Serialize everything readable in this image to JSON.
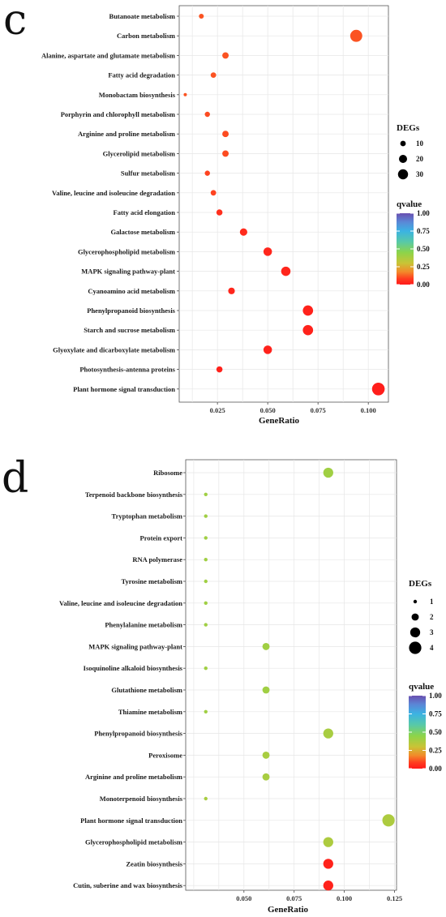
{
  "panels": [
    {
      "letter": "c",
      "chart_data": {
        "type": "scatter",
        "xlabel": "GeneRatio",
        "xlim": [
          0.006,
          0.11
        ],
        "xticks": [
          0.025,
          0.05,
          0.075,
          0.1
        ],
        "xtick_labels": [
          "0.025",
          "0.050",
          "0.075",
          "0.100"
        ],
        "grid": true,
        "legend_position": "right",
        "size_legend": {
          "title": "DEGs",
          "values": [
            10,
            20,
            30
          ],
          "labels": [
            "10",
            "20",
            "30"
          ]
        },
        "color_legend": {
          "title": "qvalue",
          "range": [
            0,
            1
          ],
          "ticks": [
            1.0,
            0.75,
            0.5,
            0.25,
            0.0
          ],
          "tick_labels": [
            "1.00",
            "0.75",
            "0.50",
            "0.25",
            "0.00"
          ]
        },
        "points": [
          {
            "term": "Butanoate metabolism",
            "gene_ratio": 0.017,
            "count": 8,
            "qvalue": 0.11
          },
          {
            "term": "Carbon metabolism",
            "gene_ratio": 0.094,
            "count": 42,
            "qvalue": 0.11
          },
          {
            "term": "Alanine, aspartate and glutamate metabolism",
            "gene_ratio": 0.029,
            "count": 13,
            "qvalue": 0.11
          },
          {
            "term": "Fatty acid degradation",
            "gene_ratio": 0.023,
            "count": 10,
            "qvalue": 0.11
          },
          {
            "term": "Monobactam biosynthesis",
            "gene_ratio": 0.009,
            "count": 4,
            "qvalue": 0.11
          },
          {
            "term": "Porphyrin and chlorophyll metabolism",
            "gene_ratio": 0.02,
            "count": 9,
            "qvalue": 0.1
          },
          {
            "term": "Arginine and proline metabolism",
            "gene_ratio": 0.029,
            "count": 13,
            "qvalue": 0.1
          },
          {
            "term": "Glycerolipid metabolism",
            "gene_ratio": 0.029,
            "count": 13,
            "qvalue": 0.1
          },
          {
            "term": "Sulfur metabolism",
            "gene_ratio": 0.02,
            "count": 9,
            "qvalue": 0.09
          },
          {
            "term": "Valine, leucine and isoleucine degradation",
            "gene_ratio": 0.023,
            "count": 10,
            "qvalue": 0.09
          },
          {
            "term": "Fatty acid elongation",
            "gene_ratio": 0.026,
            "count": 12,
            "qvalue": 0.05
          },
          {
            "term": "Galactose metabolism",
            "gene_ratio": 0.038,
            "count": 17,
            "qvalue": 0.04
          },
          {
            "term": "Glycerophospholipid metabolism",
            "gene_ratio": 0.05,
            "count": 22,
            "qvalue": 0.03
          },
          {
            "term": "MAPK signaling pathway-plant",
            "gene_ratio": 0.059,
            "count": 26,
            "qvalue": 0.03
          },
          {
            "term": "Cyanoamino acid metabolism",
            "gene_ratio": 0.032,
            "count": 14,
            "qvalue": 0.03
          },
          {
            "term": "Phenylpropanoid biosynthesis",
            "gene_ratio": 0.07,
            "count": 31,
            "qvalue": 0.02
          },
          {
            "term": "Starch and sucrose metabolism",
            "gene_ratio": 0.07,
            "count": 31,
            "qvalue": 0.02
          },
          {
            "term": "Glyoxylate and dicarboxylate metabolism",
            "gene_ratio": 0.05,
            "count": 22,
            "qvalue": 0.02
          },
          {
            "term": "Photosynthesis-antenna proteins",
            "gene_ratio": 0.026,
            "count": 12,
            "qvalue": 0.02
          },
          {
            "term": "Plant hormone signal transduction",
            "gene_ratio": 0.105,
            "count": 46,
            "qvalue": 0.01
          }
        ]
      }
    },
    {
      "letter": "d",
      "chart_data": {
        "type": "scatter",
        "xlabel": "GeneRatio",
        "xlim": [
          0.021,
          0.126
        ],
        "xticks": [
          0.05,
          0.075,
          0.1,
          0.125
        ],
        "xtick_labels": [
          "0.050",
          "0.075",
          "0.100",
          "0.125"
        ],
        "grid": true,
        "legend_position": "right",
        "size_legend": {
          "title": "DEGs",
          "values": [
            1,
            2,
            3,
            4
          ],
          "labels": [
            "1",
            "2",
            "3",
            "4"
          ]
        },
        "color_legend": {
          "title": "qvalue",
          "range": [
            0,
            1
          ],
          "ticks": [
            1.0,
            0.75,
            0.5,
            0.25,
            0.0
          ],
          "tick_labels": [
            "1.00",
            "0.75",
            "0.50",
            "0.25",
            "0.00"
          ]
        },
        "points": [
          {
            "term": "Ribosome",
            "gene_ratio": 0.092,
            "count": 3,
            "qvalue": 0.4
          },
          {
            "term": "Terpenoid backbone biosynthesis",
            "gene_ratio": 0.031,
            "count": 1,
            "qvalue": 0.4
          },
          {
            "term": "Tryptophan metabolism",
            "gene_ratio": 0.031,
            "count": 1,
            "qvalue": 0.4
          },
          {
            "term": "Protein export",
            "gene_ratio": 0.031,
            "count": 1,
            "qvalue": 0.4
          },
          {
            "term": "RNA polymerase",
            "gene_ratio": 0.031,
            "count": 1,
            "qvalue": 0.4
          },
          {
            "term": "Tyrosine metabolism",
            "gene_ratio": 0.031,
            "count": 1,
            "qvalue": 0.4
          },
          {
            "term": "Valine, leucine and isoleucine degradation",
            "gene_ratio": 0.031,
            "count": 1,
            "qvalue": 0.4
          },
          {
            "term": "Phenylalanine metabolism",
            "gene_ratio": 0.031,
            "count": 1,
            "qvalue": 0.4
          },
          {
            "term": "MAPK signaling pathway-plant",
            "gene_ratio": 0.061,
            "count": 2,
            "qvalue": 0.4
          },
          {
            "term": "Isoquinoline alkaloid biosynthesis",
            "gene_ratio": 0.031,
            "count": 1,
            "qvalue": 0.4
          },
          {
            "term": "Glutathione metabolism",
            "gene_ratio": 0.061,
            "count": 2,
            "qvalue": 0.4
          },
          {
            "term": "Thiamine metabolism",
            "gene_ratio": 0.031,
            "count": 1,
            "qvalue": 0.4
          },
          {
            "term": "Phenylpropanoid biosynthesis",
            "gene_ratio": 0.092,
            "count": 3,
            "qvalue": 0.38
          },
          {
            "term": "Peroxisome",
            "gene_ratio": 0.061,
            "count": 2,
            "qvalue": 0.38
          },
          {
            "term": "Arginine and proline metabolism",
            "gene_ratio": 0.061,
            "count": 2,
            "qvalue": 0.38
          },
          {
            "term": "Monoterpenoid biosynthesis",
            "gene_ratio": 0.031,
            "count": 1,
            "qvalue": 0.38
          },
          {
            "term": "Plant hormone signal transduction",
            "gene_ratio": 0.122,
            "count": 4,
            "qvalue": 0.37
          },
          {
            "term": "Glycerophospholipid metabolism",
            "gene_ratio": 0.092,
            "count": 3,
            "qvalue": 0.37
          },
          {
            "term": "Zeatin biosynthesis",
            "gene_ratio": 0.092,
            "count": 3,
            "qvalue": 0.02
          },
          {
            "term": "Cutin, suberine and wax biosynthesis",
            "gene_ratio": 0.092,
            "count": 3,
            "qvalue": 0.02
          }
        ]
      }
    }
  ]
}
